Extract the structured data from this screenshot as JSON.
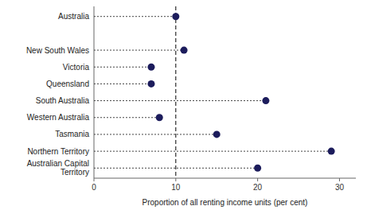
{
  "chart_data": {
    "type": "lollipop",
    "orientation": "horizontal",
    "categories": [
      "Australia",
      null,
      "New South Wales",
      "Victoria",
      "Queensland",
      "South Australia",
      "Western Australia",
      "Tasmania",
      "Northern Territory",
      "Australian Capital\nTerritory"
    ],
    "values": [
      10,
      null,
      11,
      7,
      7,
      21,
      8,
      15,
      29,
      20
    ],
    "color": "#1c1c5c",
    "line_style": "dotted",
    "reference_line": 10,
    "xlim": [
      0,
      32
    ],
    "xticks": [
      0,
      10,
      20,
      30
    ],
    "xlabel": "Proportion of all renting income units (per cent)",
    "grid": false
  }
}
